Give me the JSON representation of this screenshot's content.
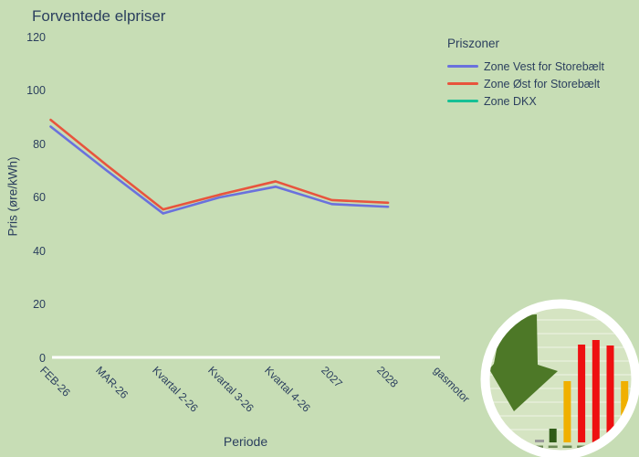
{
  "title": "Forventede elpriser",
  "axes": {
    "x_title": "Periode",
    "y_title": "Pris (øre/kWh)"
  },
  "legend": {
    "title": "Priszoner"
  },
  "colors": {
    "background": "#c7ddb5",
    "text": "#2b3f5e",
    "axis_line": "#ffffff"
  },
  "chart_data": {
    "type": "line",
    "title": "Forventede elpriser",
    "xlabel": "Periode",
    "ylabel": "Pris (øre/kWh)",
    "ylim": [
      0,
      120
    ],
    "yticks": [
      0,
      20,
      40,
      60,
      80,
      100,
      120
    ],
    "grid": false,
    "legend_title": "Priszoner",
    "legend_position": "top-right",
    "categories": [
      "FEB-26",
      "MAR-26",
      "Kvartal 2-26",
      "Kvartal 3-26",
      "Kvartal 4-26",
      "2027",
      "2028",
      "gasmotor"
    ],
    "series": [
      {
        "name": "Zone Vest for Storebælt",
        "color": "#6a71dd",
        "values": [
          86.5,
          70,
          54,
          60,
          64,
          57.5,
          56.5,
          null
        ]
      },
      {
        "name": "Zone Øst for Storebælt",
        "color": "#e8543d",
        "values": [
          89,
          72,
          55.5,
          61,
          66,
          59,
          58,
          null
        ]
      },
      {
        "name": "Zone DKX",
        "color": "#16c095",
        "values": [
          null,
          null,
          null,
          null,
          null,
          null,
          null,
          null
        ]
      }
    ]
  },
  "logo": {
    "ring_color": "#ffffff",
    "inner_color": "#d5e4c2",
    "gridline_color": "rgba(255,255,255,0.4)",
    "arrow_icon": "down-arrow",
    "arrow_color": "#4d7827",
    "bars": [
      {
        "color": "#9b9b9b",
        "h": 3
      },
      {
        "color": "#2f5c17",
        "h": 15
      },
      {
        "color": "#f0b000",
        "h": 67
      },
      {
        "color": "#ee1010",
        "h": 107
      },
      {
        "color": "#ee1010",
        "h": 112
      },
      {
        "color": "#ee1010",
        "h": 106
      },
      {
        "color": "#f0b000",
        "h": 67
      }
    ],
    "bar_label_color": "#456b2e"
  }
}
